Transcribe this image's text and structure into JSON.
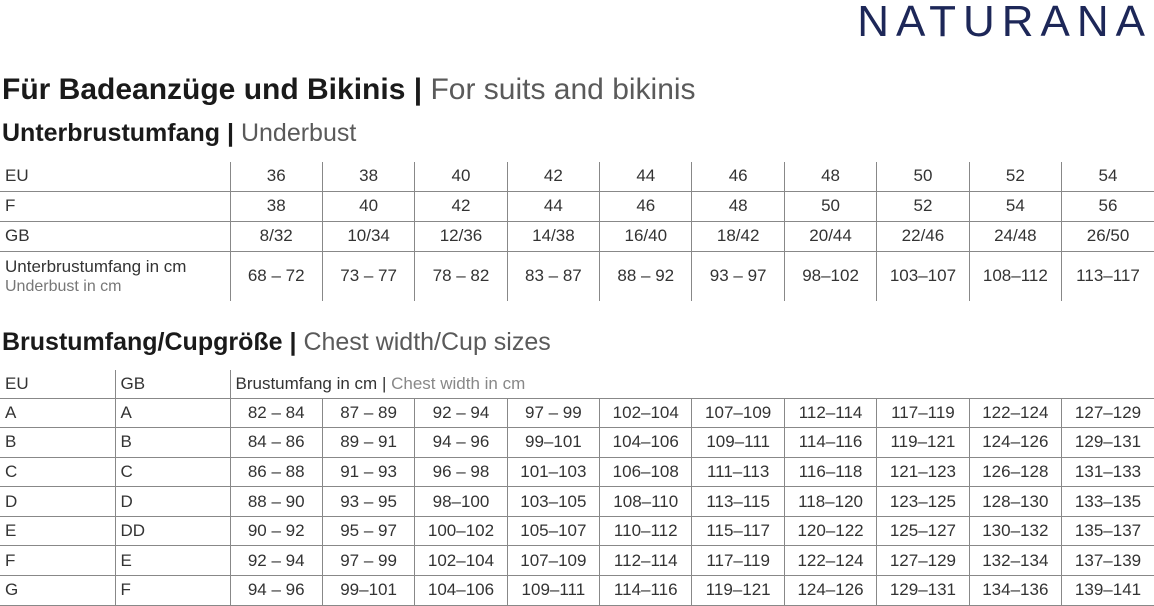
{
  "logo": "NATURANA",
  "title": {
    "main": "Für Badeanzüge und Bikinis |",
    "translation": "For suits and bikinis"
  },
  "underbust": {
    "heading": {
      "main": "Unterbrustumfang |",
      "translation": "Underbust"
    },
    "rows": [
      {
        "label": "EU",
        "cells": [
          "36",
          "38",
          "40",
          "42",
          "44",
          "46",
          "48",
          "50",
          "52",
          "54"
        ]
      },
      {
        "label": "F",
        "cells": [
          "38",
          "40",
          "42",
          "44",
          "46",
          "48",
          "50",
          "52",
          "54",
          "56"
        ]
      },
      {
        "label": "GB",
        "cells": [
          "8/32",
          "10/34",
          "12/36",
          "14/38",
          "16/40",
          "18/42",
          "20/44",
          "22/46",
          "24/48",
          "26/50"
        ]
      },
      {
        "label": "Unterbrustumfang in cm",
        "label_translation": "Underbust in cm",
        "cells": [
          "68 – 72",
          "73 – 77",
          "78 – 82",
          "83 – 87",
          "88 – 92",
          "93 – 97",
          "98–102",
          "103–107",
          "108–112",
          "113–117"
        ]
      }
    ]
  },
  "chest": {
    "heading": {
      "main": "Brustumfang/Cupgröße |",
      "translation": "Chest width/Cup sizes"
    },
    "header": {
      "eu": "EU",
      "gb": "GB",
      "measure": "Brustumfang in cm |",
      "measure_translation": "Chest width in cm"
    },
    "rows": [
      {
        "eu": "A",
        "gb": "A",
        "cells": [
          "82 – 84",
          "87 – 89",
          "92 – 94",
          "97 – 99",
          "102–104",
          "107–109",
          "112–114",
          "117–119",
          "122–124",
          "127–129"
        ]
      },
      {
        "eu": "B",
        "gb": "B",
        "cells": [
          "84 – 86",
          "89 – 91",
          "94 – 96",
          "99–101",
          "104–106",
          "109–111",
          "114–116",
          "119–121",
          "124–126",
          "129–131"
        ]
      },
      {
        "eu": "C",
        "gb": "C",
        "cells": [
          "86 – 88",
          "91 – 93",
          "96 – 98",
          "101–103",
          "106–108",
          "111–113",
          "116–118",
          "121–123",
          "126–128",
          "131–133"
        ]
      },
      {
        "eu": "D",
        "gb": "D",
        "cells": [
          "88 – 90",
          "93 – 95",
          "98–100",
          "103–105",
          "108–110",
          "113–115",
          "118–120",
          "123–125",
          "128–130",
          "133–135"
        ]
      },
      {
        "eu": "E",
        "gb": "DD",
        "cells": [
          "90 – 92",
          "95 – 97",
          "100–102",
          "105–107",
          "110–112",
          "115–117",
          "120–122",
          "125–127",
          "130–132",
          "135–137"
        ]
      },
      {
        "eu": "F",
        "gb": "E",
        "cells": [
          "92 – 94",
          "97 – 99",
          "102–104",
          "107–109",
          "112–114",
          "117–119",
          "122–124",
          "127–129",
          "132–134",
          "137–139"
        ]
      },
      {
        "eu": "G",
        "gb": "F",
        "cells": [
          "94 – 96",
          "99–101",
          "104–106",
          "109–111",
          "114–116",
          "119–121",
          "124–126",
          "129–131",
          "134–136",
          "139–141"
        ]
      }
    ]
  }
}
